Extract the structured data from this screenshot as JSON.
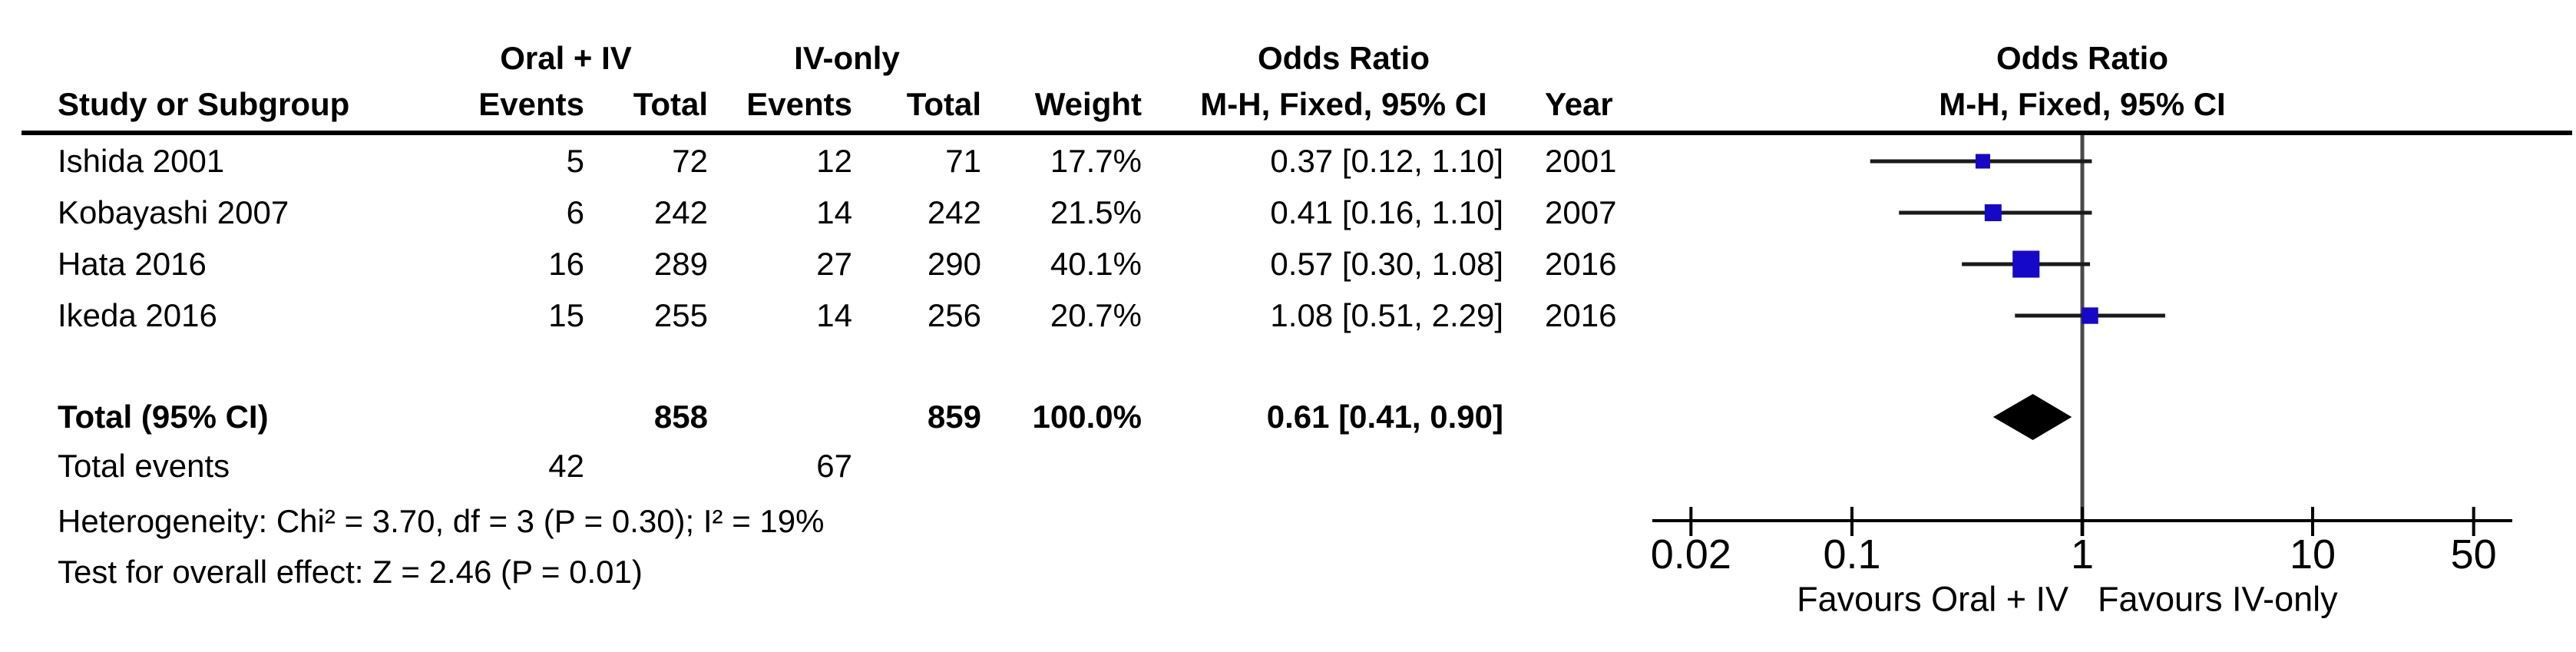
{
  "header": {
    "group1": "Oral + IV",
    "group2": "IV-only",
    "group3": "Odds Ratio",
    "group4": "Odds Ratio",
    "study": "Study or Subgroup",
    "events1": "Events",
    "total1": "Total",
    "events2": "Events",
    "total2": "Total",
    "weight": "Weight",
    "mh1": "M-H, Fixed, 95% CI",
    "year": "Year",
    "mh2": "M-H, Fixed, 95% CI"
  },
  "rows": [
    {
      "study": "Ishida 2001",
      "e1": "5",
      "t1": "72",
      "e2": "12",
      "t2": "71",
      "weight": "17.7%",
      "ci": "0.37 [0.12, 1.10]",
      "year": "2001"
    },
    {
      "study": "Kobayashi 2007",
      "e1": "6",
      "t1": "242",
      "e2": "14",
      "t2": "242",
      "weight": "21.5%",
      "ci": "0.41 [0.16, 1.10]",
      "year": "2007"
    },
    {
      "study": "Hata 2016",
      "e1": "16",
      "t1": "289",
      "e2": "27",
      "t2": "290",
      "weight": "40.1%",
      "ci": "0.57 [0.30, 1.08]",
      "year": "2016"
    },
    {
      "study": "Ikeda 2016",
      "e1": "15",
      "t1": "255",
      "e2": "14",
      "t2": "256",
      "weight": "20.7%",
      "ci": "1.08 [0.51, 2.29]",
      "year": "2016"
    }
  ],
  "total_row": {
    "label": "Total (95% CI)",
    "t1": "858",
    "t2": "859",
    "weight": "100.0%",
    "ci": "0.61 [0.41, 0.90]"
  },
  "total_events": {
    "label": "Total events",
    "e1": "42",
    "e2": "67"
  },
  "footer": {
    "heterogeneity": "Heterogeneity: Chi² = 3.70, df = 3 (P = 0.30); I² = 19%",
    "overall": "Test for overall effect: Z = 2.46 (P = 0.01)"
  },
  "axis": {
    "tick_labels": [
      "0.02",
      "0.1",
      "1",
      "10",
      "50"
    ],
    "favours_left": "Favours Oral + IV",
    "favours_right": "Favours IV-only"
  },
  "colors": {
    "marker": "#1508C8",
    "diamond": "#000000",
    "ci_line": "#1a1a1a",
    "axis_line": "#000000",
    "null_line": "#4a4a4a",
    "text": "#000000"
  },
  "chart_data": {
    "type": "forest",
    "effect_measure": "Odds Ratio",
    "method": "M-H, Fixed, 95% CI",
    "x_scale": "log",
    "x_ticks": [
      0.02,
      0.1,
      1,
      10,
      50
    ],
    "x_range": [
      0.02,
      50
    ],
    "null_line": 1,
    "studies": [
      {
        "name": "Ishida 2001",
        "events_exp": 5,
        "total_exp": 72,
        "events_ctrl": 12,
        "total_ctrl": 71,
        "weight_pct": 17.7,
        "or": 0.37,
        "ci_low": 0.12,
        "ci_high": 1.1,
        "year": 2001
      },
      {
        "name": "Kobayashi 2007",
        "events_exp": 6,
        "total_exp": 242,
        "events_ctrl": 14,
        "total_ctrl": 242,
        "weight_pct": 21.5,
        "or": 0.41,
        "ci_low": 0.16,
        "ci_high": 1.1,
        "year": 2007
      },
      {
        "name": "Hata 2016",
        "events_exp": 16,
        "total_exp": 289,
        "events_ctrl": 27,
        "total_ctrl": 290,
        "weight_pct": 40.1,
        "or": 0.57,
        "ci_low": 0.3,
        "ci_high": 1.08,
        "year": 2016
      },
      {
        "name": "Ikeda 2016",
        "events_exp": 15,
        "total_exp": 255,
        "events_ctrl": 14,
        "total_ctrl": 256,
        "weight_pct": 20.7,
        "or": 1.08,
        "ci_low": 0.51,
        "ci_high": 2.29,
        "year": 2016
      }
    ],
    "total": {
      "label": "Total (95% CI)",
      "total_exp": 858,
      "total_ctrl": 859,
      "events_exp": 42,
      "events_ctrl": 67,
      "weight_pct": 100.0,
      "or": 0.61,
      "ci_low": 0.41,
      "ci_high": 0.9
    },
    "heterogeneity": "Chi² = 3.70, df = 3 (P = 0.30); I² = 19%",
    "overall_effect": "Z = 2.46 (P = 0.01)",
    "favours": [
      "Favours Oral + IV",
      "Favours IV-only"
    ]
  }
}
